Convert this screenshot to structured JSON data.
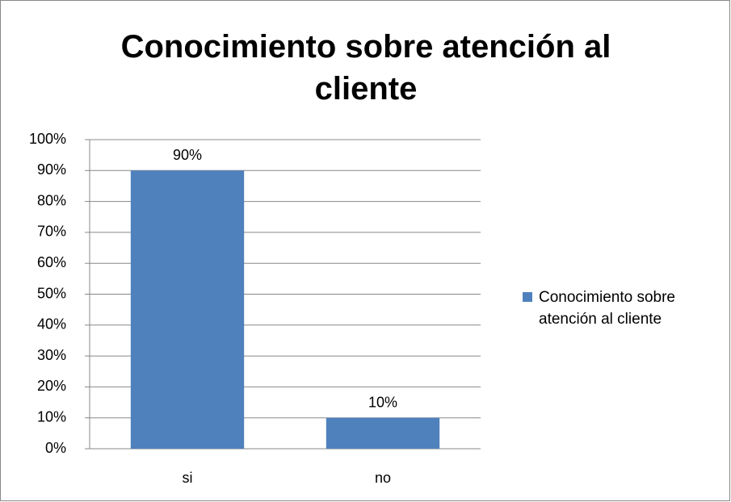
{
  "chart_data": {
    "type": "bar",
    "title": "Conocimiento sobre atención al cliente",
    "categories": [
      "si",
      "no"
    ],
    "series": [
      {
        "name": "Conocimiento sobre atención al cliente",
        "color": "#4f81bd",
        "values": [
          90,
          10
        ],
        "value_labels": [
          "90%",
          "10%"
        ]
      }
    ],
    "ylim": [
      0,
      100
    ],
    "yticks": [
      {
        "value": 0,
        "label": "0%"
      },
      {
        "value": 10,
        "label": "10%"
      },
      {
        "value": 20,
        "label": "20%"
      },
      {
        "value": 30,
        "label": "30%"
      },
      {
        "value": 40,
        "label": "40%"
      },
      {
        "value": 50,
        "label": "50%"
      },
      {
        "value": 60,
        "label": "60%"
      },
      {
        "value": 70,
        "label": "70%"
      },
      {
        "value": 80,
        "label": "80%"
      },
      {
        "value": 90,
        "label": "90%"
      },
      {
        "value": 100,
        "label": "100%"
      }
    ],
    "grid": true,
    "legend": "right"
  }
}
